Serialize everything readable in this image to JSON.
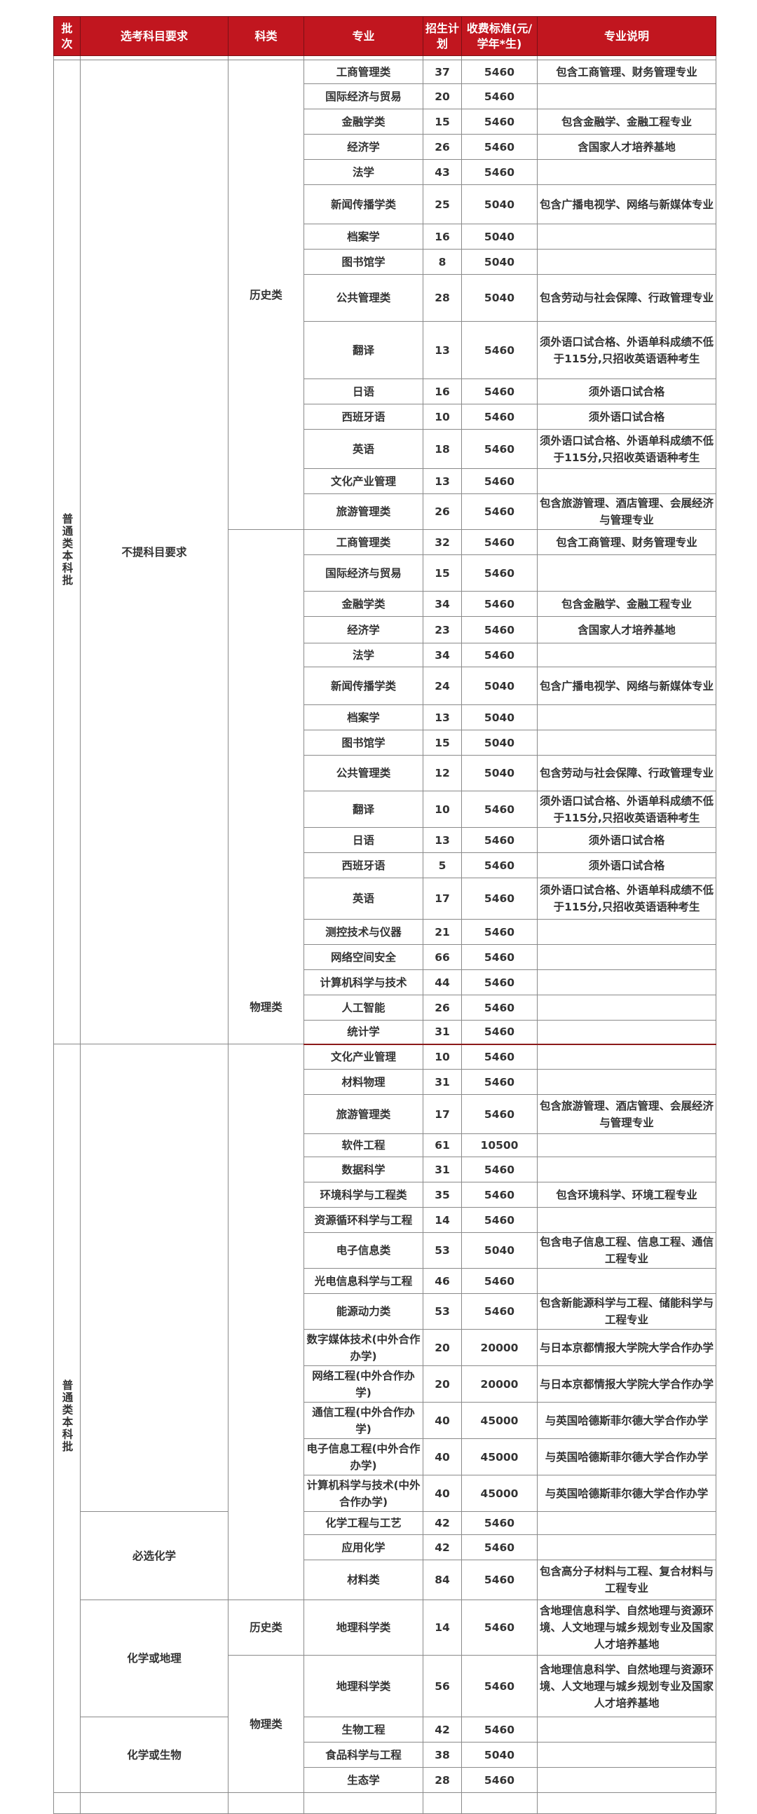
{
  "header": {
    "batch": "批次",
    "requirement": "选考科目要求",
    "category": "科类",
    "major": "专业",
    "plan": "招生计划",
    "fee": "收费标准(元/学年*生)",
    "desc": "专业说明"
  },
  "colors": {
    "header_bg": "#c1161f",
    "header_text": "#ffffff",
    "page_break_line": "#8b1a1a"
  },
  "batch_groups": [
    {
      "text": "普通类本科批",
      "rows": 33
    },
    {
      "text": "普通类本科批",
      "rows": 23
    }
  ],
  "requirement_groups": [
    {
      "text": "不提科目要求",
      "rows": 33
    },
    {
      "text": "",
      "rows": 15
    },
    {
      "text": "必选化学",
      "rows": 3
    },
    {
      "text": "化学或地理",
      "rows": 2
    },
    {
      "text": "化学或生物",
      "rows": 3
    }
  ],
  "category_groups": [
    {
      "text": "历史类",
      "rows": 15
    },
    {
      "text": "物理类",
      "rows": 18
    },
    {
      "text": "",
      "rows": 18
    },
    {
      "text": "历史类",
      "rows": 1
    },
    {
      "text": "物理类",
      "rows": 4
    }
  ],
  "rows": [
    {
      "major": "工商管理类",
      "plan": "37",
      "fee": "5460",
      "desc": "包含工商管理、财务管理专业"
    },
    {
      "major": "国际经济与贸易",
      "plan": "20",
      "fee": "5460",
      "desc": ""
    },
    {
      "major": "金融学类",
      "plan": "15",
      "fee": "5460",
      "desc": "包含金融学、金融工程专业"
    },
    {
      "major": "经济学",
      "plan": "26",
      "fee": "5460",
      "desc": "含国家人才培养基地"
    },
    {
      "major": "法学",
      "plan": "43",
      "fee": "5460",
      "desc": ""
    },
    {
      "major": "新闻传播学类",
      "plan": "25",
      "fee": "5040",
      "desc": "包含广播电视学、网络与新媒体专业"
    },
    {
      "major": "档案学",
      "plan": "16",
      "fee": "5040",
      "desc": ""
    },
    {
      "major": "图书馆学",
      "plan": "8",
      "fee": "5040",
      "desc": ""
    },
    {
      "major": "公共管理类",
      "plan": "28",
      "fee": "5040",
      "desc": "包含劳动与社会保障、行政管理专业"
    },
    {
      "major": "翻译",
      "plan": "13",
      "fee": "5460",
      "desc": "须外语口试合格、外语单科成绩不低于115分,只招收英语语种考生"
    },
    {
      "major": "日语",
      "plan": "16",
      "fee": "5460",
      "desc": "须外语口试合格"
    },
    {
      "major": "西班牙语",
      "plan": "10",
      "fee": "5460",
      "desc": "须外语口试合格"
    },
    {
      "major": "英语",
      "plan": "18",
      "fee": "5460",
      "desc": "须外语口试合格、外语单科成绩不低于115分,只招收英语语种考生"
    },
    {
      "major": "文化产业管理",
      "plan": "13",
      "fee": "5460",
      "desc": ""
    },
    {
      "major": "旅游管理类",
      "plan": "26",
      "fee": "5460",
      "desc": "包含旅游管理、酒店管理、会展经济与管理专业"
    },
    {
      "major": "工商管理类",
      "plan": "32",
      "fee": "5460",
      "desc": "包含工商管理、财务管理专业"
    },
    {
      "major": "国际经济与贸易",
      "plan": "15",
      "fee": "5460",
      "desc": ""
    },
    {
      "major": "金融学类",
      "plan": "34",
      "fee": "5460",
      "desc": "包含金融学、金融工程专业"
    },
    {
      "major": "经济学",
      "plan": "23",
      "fee": "5460",
      "desc": "含国家人才培养基地"
    },
    {
      "major": "法学",
      "plan": "34",
      "fee": "5460",
      "desc": ""
    },
    {
      "major": "新闻传播学类",
      "plan": "24",
      "fee": "5040",
      "desc": "包含广播电视学、网络与新媒体专业"
    },
    {
      "major": "档案学",
      "plan": "13",
      "fee": "5040",
      "desc": ""
    },
    {
      "major": "图书馆学",
      "plan": "15",
      "fee": "5040",
      "desc": ""
    },
    {
      "major": "公共管理类",
      "plan": "12",
      "fee": "5040",
      "desc": "包含劳动与社会保障、行政管理专业"
    },
    {
      "major": "翻译",
      "plan": "10",
      "fee": "5460",
      "desc": "须外语口试合格、外语单科成绩不低于115分,只招收英语语种考生"
    },
    {
      "major": "日语",
      "plan": "13",
      "fee": "5460",
      "desc": "须外语口试合格"
    },
    {
      "major": "西班牙语",
      "plan": "5",
      "fee": "5460",
      "desc": "须外语口试合格"
    },
    {
      "major": "英语",
      "plan": "17",
      "fee": "5460",
      "desc": "须外语口试合格、外语单科成绩不低于115分,只招收英语语种考生"
    },
    {
      "major": "测控技术与仪器",
      "plan": "21",
      "fee": "5460",
      "desc": ""
    },
    {
      "major": "网络空间安全",
      "plan": "66",
      "fee": "5460",
      "desc": ""
    },
    {
      "major": "计算机科学与技术",
      "plan": "44",
      "fee": "5460",
      "desc": ""
    },
    {
      "major": "人工智能",
      "plan": "26",
      "fee": "5460",
      "desc": ""
    },
    {
      "major": "统计学",
      "plan": "31",
      "fee": "5460",
      "desc": ""
    },
    {
      "major": "文化产业管理",
      "plan": "10",
      "fee": "5460",
      "desc": ""
    },
    {
      "major": "材料物理",
      "plan": "31",
      "fee": "5460",
      "desc": ""
    },
    {
      "major": "旅游管理类",
      "plan": "17",
      "fee": "5460",
      "desc": "包含旅游管理、酒店管理、会展经济与管理专业"
    },
    {
      "major": "软件工程",
      "plan": "61",
      "fee": "10500",
      "desc": ""
    },
    {
      "major": "数据科学",
      "plan": "31",
      "fee": "5460",
      "desc": ""
    },
    {
      "major": "环境科学与工程类",
      "plan": "35",
      "fee": "5460",
      "desc": "包含环境科学、环境工程专业"
    },
    {
      "major": "资源循环科学与工程",
      "plan": "14",
      "fee": "5460",
      "desc": ""
    },
    {
      "major": "电子信息类",
      "plan": "53",
      "fee": "5040",
      "desc": "包含电子信息工程、信息工程、通信工程专业"
    },
    {
      "major": "光电信息科学与工程",
      "plan": "46",
      "fee": "5460",
      "desc": ""
    },
    {
      "major": "能源动力类",
      "plan": "53",
      "fee": "5460",
      "desc": "包含新能源科学与工程、储能科学与工程专业"
    },
    {
      "major": "数字媒体技术(中外合作办学)",
      "plan": "20",
      "fee": "20000",
      "desc": "与日本京都情报大学院大学合作办学"
    },
    {
      "major": "网络工程(中外合作办学)",
      "plan": "20",
      "fee": "20000",
      "desc": "与日本京都情报大学院大学合作办学"
    },
    {
      "major": "通信工程(中外合作办学)",
      "plan": "40",
      "fee": "45000",
      "desc": "与英国哈德斯菲尔德大学合作办学"
    },
    {
      "major": "电子信息工程(中外合作办学)",
      "plan": "40",
      "fee": "45000",
      "desc": "与英国哈德斯菲尔德大学合作办学"
    },
    {
      "major": "计算机科学与技术(中外合作办学)",
      "plan": "40",
      "fee": "45000",
      "desc": "与英国哈德斯菲尔德大学合作办学"
    },
    {
      "major": "化学工程与工艺",
      "plan": "42",
      "fee": "5460",
      "desc": ""
    },
    {
      "major": "应用化学",
      "plan": "42",
      "fee": "5460",
      "desc": ""
    },
    {
      "major": "材料类",
      "plan": "84",
      "fee": "5460",
      "desc": "包含高分子材料与工程、复合材料与工程专业"
    },
    {
      "major": "地理科学类",
      "plan": "14",
      "fee": "5460",
      "desc": "含地理信息科学、自然地理与资源环境、人文地理与城乡规划专业及国家人才培养基地"
    },
    {
      "major": "地理科学类",
      "plan": "56",
      "fee": "5460",
      "desc": "含地理信息科学、自然地理与资源环境、人文地理与城乡规划专业及国家人才培养基地"
    },
    {
      "major": "生物工程",
      "plan": "42",
      "fee": "5460",
      "desc": ""
    },
    {
      "major": "食品科学与工程",
      "plan": "38",
      "fee": "5040",
      "desc": ""
    },
    {
      "major": "生态学",
      "plan": "28",
      "fee": "5460",
      "desc": ""
    }
  ]
}
